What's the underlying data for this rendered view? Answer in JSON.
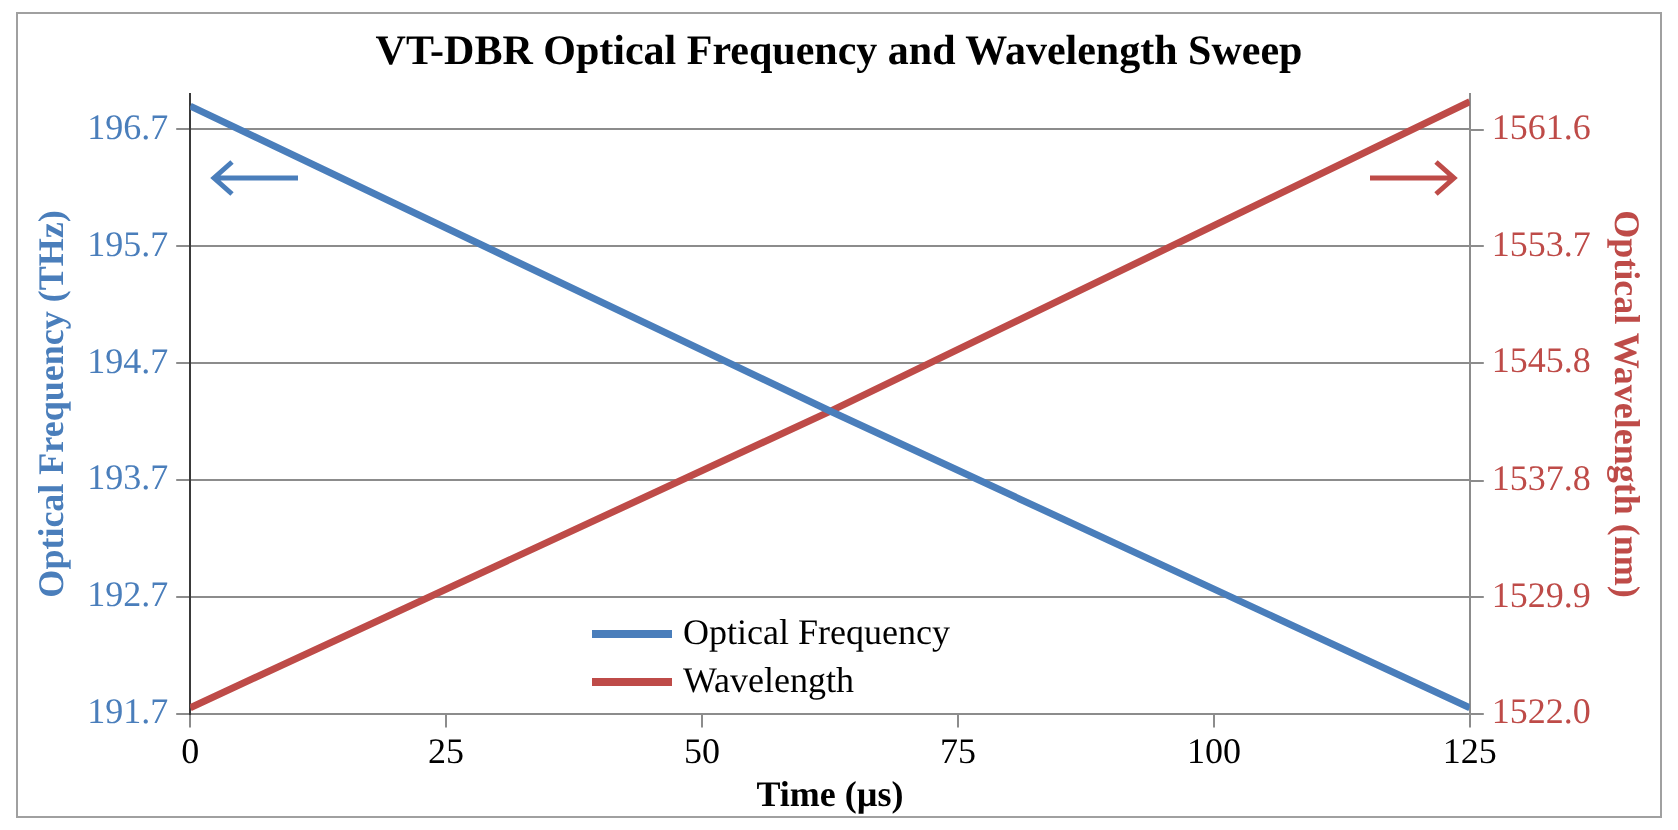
{
  "chart_data": {
    "type": "line",
    "title": "VT-DBR Optical Frequency and Wavelength Sweep",
    "xlabel": "Time (µs)",
    "ylabel": "Optical Frequency (THz)",
    "y2label": "Optical Wavelength (nm)",
    "x": [
      0,
      62.5,
      125
    ],
    "series": [
      {
        "name": "Optical Frequency",
        "color": "#4a7ebb",
        "values": [
          196.9,
          194.29,
          191.75
        ]
      },
      {
        "name": "Wavelength",
        "color": "#be4b48",
        "axis": "y2",
        "values": [
          1522.4,
          1542.5,
          1563.5
        ]
      }
    ],
    "xlim": [
      0,
      125
    ],
    "xticks": [
      0,
      25,
      50,
      75,
      100,
      125
    ],
    "ylim": [
      191.7,
      197.0
    ],
    "yticks": [
      191.7,
      192.7,
      193.7,
      194.7,
      195.7,
      196.7
    ],
    "y2lim": [
      1522.0,
      1564.0
    ],
    "y2ticks": [
      {
        "value": 1522,
        "label": "1522.0"
      },
      1529.9,
      1537.8,
      1545.8,
      1553.7,
      1561.6
    ],
    "grid": "y",
    "legend": "bottom",
    "marker": "none",
    "line_style": "solid"
  }
}
